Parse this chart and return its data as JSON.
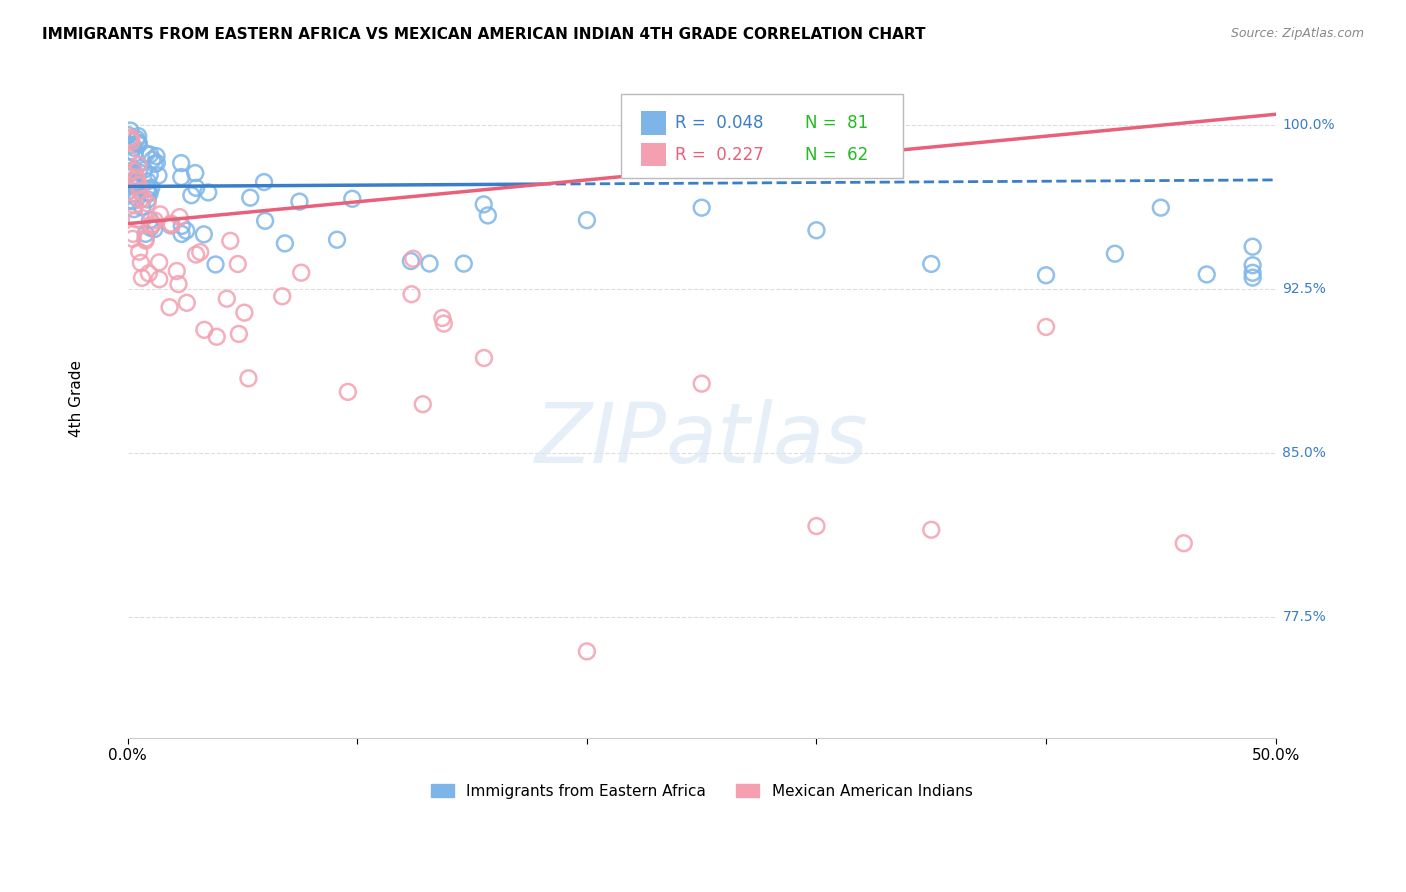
{
  "title": "IMMIGRANTS FROM EASTERN AFRICA VS MEXICAN AMERICAN INDIAN 4TH GRADE CORRELATION CHART",
  "source": "Source: ZipAtlas.com",
  "ylabel": "4th Grade",
  "y_tick_labels": [
    "100.0%",
    "92.5%",
    "85.0%",
    "77.5%"
  ],
  "y_tick_values": [
    1.0,
    0.925,
    0.85,
    0.775
  ],
  "xmin": 0.0,
  "xmax": 0.5,
  "ymin": 0.72,
  "ymax": 1.03,
  "blue_color": "#7EB5E8",
  "pink_color": "#F4A0B0",
  "blue_line_color": "#3A7DC9",
  "pink_line_color": "#E8607A",
  "blue_N": 81,
  "pink_N": 62,
  "watermark": "ZIPatlas",
  "grid_color": "#DDDDDD",
  "axis_color": "#CCCCCC",
  "legend_blue_R": "R =  0.048",
  "legend_blue_N": "N =  81",
  "legend_pink_R": "R =  0.227",
  "legend_pink_N": "N =  62",
  "legend_R_color_blue": "#3A7DC9",
  "legend_R_color_pink": "#E8607A",
  "legend_N_color": "#22BB22"
}
